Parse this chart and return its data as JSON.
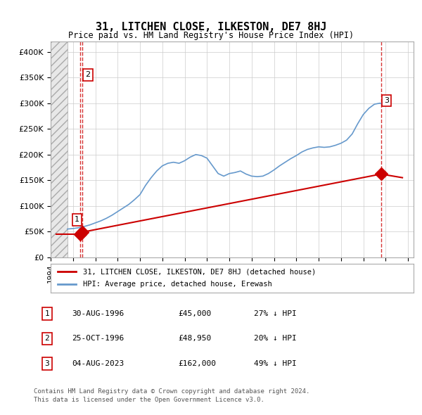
{
  "title": "31, LITCHEN CLOSE, ILKESTON, DE7 8HJ",
  "subtitle": "Price paid vs. HM Land Registry's House Price Index (HPI)",
  "legend_line1": "31, LITCHEN CLOSE, ILKESTON, DE7 8HJ (detached house)",
  "legend_line2": "HPI: Average price, detached house, Erewash",
  "ylabel_ticks": [
    "£0",
    "£50K",
    "£100K",
    "£150K",
    "£200K",
    "£250K",
    "£300K",
    "£350K",
    "£400K"
  ],
  "ytick_values": [
    0,
    50000,
    100000,
    150000,
    200000,
    250000,
    300000,
    350000,
    400000
  ],
  "ylim": [
    0,
    420000
  ],
  "xlim_start": 1994.0,
  "xlim_end": 2026.5,
  "hatch_end_year": 1995.5,
  "transactions": [
    {
      "label": "1",
      "date": "30-AUG-1996",
      "price": 45000,
      "x": 1996.667,
      "pct": "27%",
      "dir": "↓"
    },
    {
      "label": "2",
      "date": "25-OCT-1996",
      "price": 48950,
      "x": 1996.833,
      "pct": "20%",
      "dir": "↓"
    },
    {
      "label": "3",
      "date": "04-AUG-2023",
      "price": 162000,
      "x": 2023.583,
      "pct": "49%",
      "dir": "↓"
    }
  ],
  "table_rows": [
    [
      "1",
      "30-AUG-1996",
      "£45,000",
      "27% ↓ HPI"
    ],
    [
      "2",
      "25-OCT-1996",
      "£48,950",
      "20% ↓ HPI"
    ],
    [
      "3",
      "04-AUG-2023",
      "£162,000",
      "49% ↓ HPI"
    ]
  ],
  "footnote1": "Contains HM Land Registry data © Crown copyright and database right 2024.",
  "footnote2": "This data is licensed under the Open Government Licence v3.0.",
  "red_color": "#cc0000",
  "blue_color": "#6699cc",
  "marker_color": "#cc0000",
  "dashed_line_color": "#cc0000",
  "hatch_color": "#cccccc",
  "grid_color": "#cccccc",
  "background_color": "#ffffff",
  "hpi_data_x": [
    1995.5,
    1996.0,
    1996.5,
    1997.0,
    1997.5,
    1998.0,
    1998.5,
    1999.0,
    1999.5,
    2000.0,
    2000.5,
    2001.0,
    2001.5,
    2002.0,
    2002.5,
    2003.0,
    2003.5,
    2004.0,
    2004.5,
    2005.0,
    2005.5,
    2006.0,
    2006.5,
    2007.0,
    2007.5,
    2008.0,
    2008.5,
    2009.0,
    2009.5,
    2010.0,
    2010.5,
    2011.0,
    2011.5,
    2012.0,
    2012.5,
    2013.0,
    2013.5,
    2014.0,
    2014.5,
    2015.0,
    2015.5,
    2016.0,
    2016.5,
    2017.0,
    2017.5,
    2018.0,
    2018.5,
    2019.0,
    2019.5,
    2020.0,
    2020.5,
    2021.0,
    2021.5,
    2022.0,
    2022.5,
    2023.0,
    2023.5,
    2024.0
  ],
  "hpi_data_y": [
    55000,
    56000,
    57500,
    60000,
    63000,
    67000,
    71000,
    76000,
    82000,
    89000,
    96000,
    103000,
    112000,
    122000,
    140000,
    155000,
    168000,
    178000,
    183000,
    185000,
    183000,
    188000,
    195000,
    200000,
    198000,
    193000,
    178000,
    163000,
    158000,
    163000,
    165000,
    168000,
    162000,
    158000,
    157000,
    158000,
    163000,
    170000,
    178000,
    185000,
    192000,
    198000,
    205000,
    210000,
    213000,
    215000,
    214000,
    215000,
    218000,
    222000,
    228000,
    240000,
    260000,
    278000,
    290000,
    298000,
    300000,
    295000
  ],
  "price_data_x": [
    1994.0,
    1996.667,
    1996.833,
    2023.583,
    2025.0
  ],
  "price_data_y": [
    45000,
    45000,
    48950,
    162000,
    155000
  ]
}
